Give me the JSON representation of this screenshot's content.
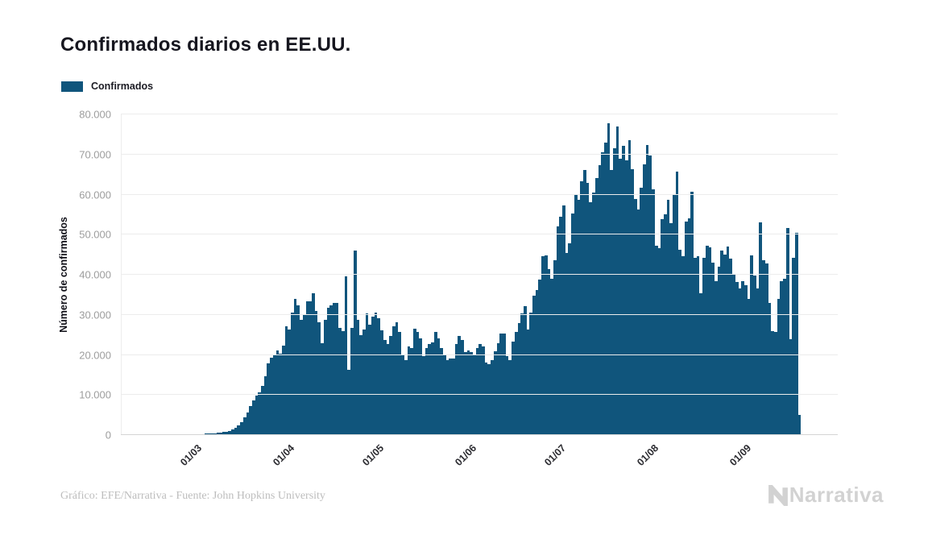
{
  "title": "Confirmados diarios en EE.UU.",
  "legend": {
    "label": "Confirmados",
    "swatch_color": "#10557c"
  },
  "footer": {
    "credit": "Gráfico: EFE/Narrativa - Fuente: John Hopkins University"
  },
  "logo": {
    "text": "Narrativa"
  },
  "chart_data": {
    "type": "bar",
    "title": "Confirmados diarios en EE.UU.",
    "series_name": "Confirmados",
    "xlabel": "",
    "ylabel": "Número de confirmados",
    "ylim": [
      0,
      80000
    ],
    "y_tick_values": [
      0,
      10000,
      20000,
      30000,
      40000,
      50000,
      60000,
      70000,
      80000
    ],
    "y_tick_labels": [
      "0",
      "10.000",
      "20.000",
      "30.000",
      "40.000",
      "50.000",
      "60.000",
      "70.000",
      "80.000"
    ],
    "x_tick_labels": [
      "01/03",
      "01/04",
      "01/05",
      "01/06",
      "01/07",
      "01/08",
      "01/09"
    ],
    "x_tick_day_index": [
      24,
      55,
      85,
      116,
      146,
      177,
      208
    ],
    "x_domain_days": 240,
    "grid": "horizontal",
    "legend_position": "top-left",
    "bar_color": "#10557c",
    "values": [
      0,
      0,
      0,
      0,
      0,
      0,
      0,
      0,
      0,
      0,
      1,
      2,
      3,
      2,
      4,
      6,
      8,
      10,
      12,
      14,
      16,
      18,
      20,
      24,
      30,
      45,
      65,
      90,
      120,
      160,
      210,
      270,
      330,
      420,
      550,
      700,
      900,
      1200,
      1700,
      2300,
      3100,
      4200,
      5500,
      7000,
      8500,
      9600,
      10400,
      12000,
      14500,
      17700,
      19100,
      20000,
      21000,
      20100,
      22100,
      27100,
      26100,
      30500,
      33800,
      32200,
      28700,
      29800,
      33200,
      33200,
      35200,
      30800,
      28100,
      22700,
      28700,
      31600,
      32200,
      32800,
      32800,
      26700,
      25700,
      39600,
      16100,
      26700,
      46000,
      28700,
      24700,
      26100,
      30200,
      27500,
      29500,
      30500,
      29000,
      26000,
      23500,
      22500,
      24500,
      27000,
      28000,
      25500,
      20000,
      18500,
      22000,
      21500,
      26500,
      25500,
      24000,
      19500,
      21500,
      22500,
      23000,
      25500,
      24000,
      21500,
      20000,
      18500,
      19000,
      19000,
      22500,
      24500,
      23500,
      20500,
      21000,
      20500,
      19800,
      21500,
      22500,
      22000,
      17900,
      17600,
      18600,
      20800,
      22800,
      25200,
      25100,
      19500,
      18600,
      23200,
      25500,
      27800,
      30300,
      32000,
      26100,
      30500,
      34700,
      36000,
      38700,
      44600,
      44700,
      41400,
      38900,
      43600,
      52000,
      54500,
      57200,
      45300,
      47800,
      55300,
      60000,
      58600,
      63200,
      66000,
      62900,
      58100,
      60500,
      64000,
      67400,
      70600,
      73000,
      77700,
      66000,
      71500,
      76900,
      68900,
      72200,
      68500,
      73500,
      66300,
      58900,
      56300,
      61700,
      67600,
      72400,
      69700,
      61300,
      47200,
      46600,
      53900,
      55000,
      58700,
      52700,
      60000,
      65700,
      46200,
      44600,
      53300,
      54000,
      60700,
      44200,
      44600,
      35200,
      44200,
      47200,
      46800,
      43000,
      38200,
      42000,
      46000,
      45000,
      47000,
      44000,
      40000,
      38000,
      36500,
      38200,
      37200,
      33800,
      44800,
      39800,
      36500,
      52900,
      43600,
      42800,
      32800,
      25700,
      25500,
      33800,
      38200,
      38800,
      51600,
      23700,
      44200,
      50300,
      4900
    ]
  }
}
